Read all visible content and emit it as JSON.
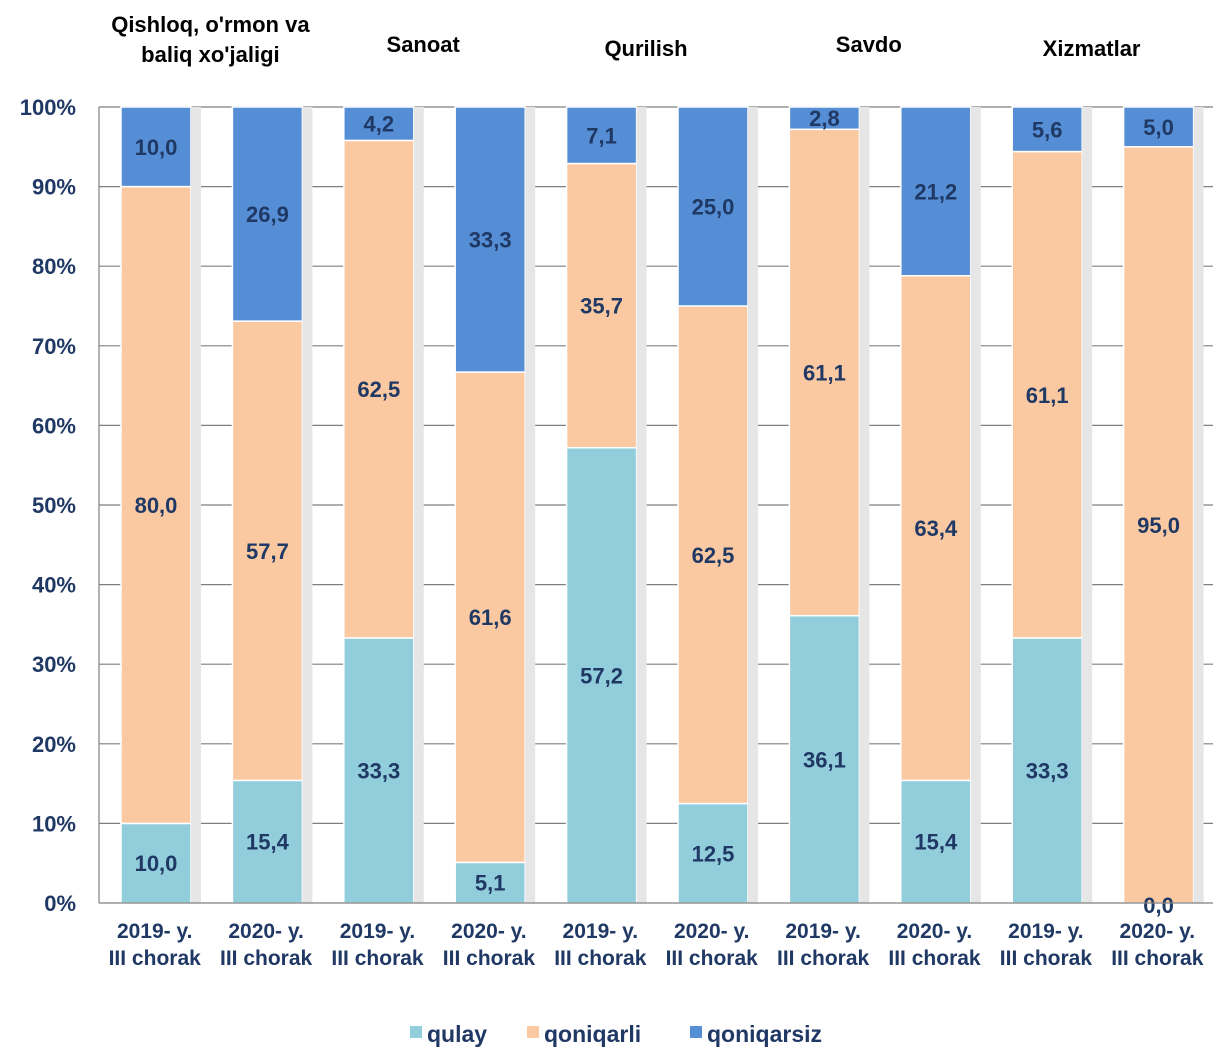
{
  "chart_data": {
    "type": "bar",
    "stacked": true,
    "percent_axis": true,
    "ylim": [
      0,
      100
    ],
    "ytick_labels": [
      "0%",
      "10%",
      "20%",
      "30%",
      "40%",
      "50%",
      "60%",
      "70%",
      "80%",
      "90%",
      "100%"
    ],
    "grid": true,
    "legend_position": "bottom",
    "groups": [
      {
        "title": "Qishloq, o'rmon va baliq xo'jaligi",
        "title_lines": [
          "Qishloq, o'rmon va",
          "baliq xo'jaligi"
        ]
      },
      {
        "title": "Sanoat",
        "title_lines": [
          "Sanoat"
        ]
      },
      {
        "title": "Qurilish",
        "title_lines": [
          "Qurilish"
        ]
      },
      {
        "title": "Savdo",
        "title_lines": [
          "Savdo"
        ]
      },
      {
        "title": "Xizmatlar",
        "title_lines": [
          "Xizmatlar"
        ]
      }
    ],
    "categories": [
      "2019- y. III chorak",
      "2020- y. III chorak",
      "2019- y. III chorak",
      "2020- y. III chorak",
      "2019- y. III chorak",
      "2020- y. III chorak",
      "2019- y. III chorak",
      "2020- y. III chorak",
      "2019- y. III chorak",
      "2020- y. III chorak"
    ],
    "category_lines": [
      [
        "2019- y.",
        "III chorak"
      ],
      [
        "2020- y.",
        "III chorak"
      ],
      [
        "2019- y.",
        "III chorak"
      ],
      [
        "2020- y.",
        "III chorak"
      ],
      [
        "2019- y.",
        "III chorak"
      ],
      [
        "2020- y.",
        "III chorak"
      ],
      [
        "2019- y.",
        "III chorak"
      ],
      [
        "2020- y.",
        "III chorak"
      ],
      [
        "2019- y.",
        "III chorak"
      ],
      [
        "2020- y.",
        "III chorak"
      ]
    ],
    "series": [
      {
        "name": "qulay",
        "color": "#92cddc",
        "values": [
          10.0,
          15.4,
          33.3,
          5.1,
          57.2,
          12.5,
          36.1,
          15.4,
          33.3,
          0.0
        ],
        "labels": [
          "10,0",
          "15,4",
          "33,3",
          "5,1",
          "57,2",
          "12,5",
          "36,1",
          "15,4",
          "33,3",
          "0,0"
        ]
      },
      {
        "name": "qoniqarli",
        "color": "#fac9a2",
        "values": [
          80.0,
          57.7,
          62.5,
          61.6,
          35.7,
          62.5,
          61.1,
          63.4,
          61.1,
          95.0
        ],
        "labels": [
          "80,0",
          "57,7",
          "62,5",
          "61,6",
          "35,7",
          "62,5",
          "61,1",
          "63,4",
          "61,1",
          "95,0"
        ]
      },
      {
        "name": "qoniqarsiz",
        "color": "#558ed5",
        "values": [
          10.0,
          26.9,
          4.2,
          33.3,
          7.1,
          25.0,
          2.8,
          21.2,
          5.6,
          5.0
        ],
        "labels": [
          "10,0",
          "26,9",
          "4,2",
          "33,3",
          "7,1",
          "25,0",
          "2,8",
          "21,2",
          "5,6",
          "5,0"
        ]
      }
    ],
    "label_color": "#1f3864"
  }
}
